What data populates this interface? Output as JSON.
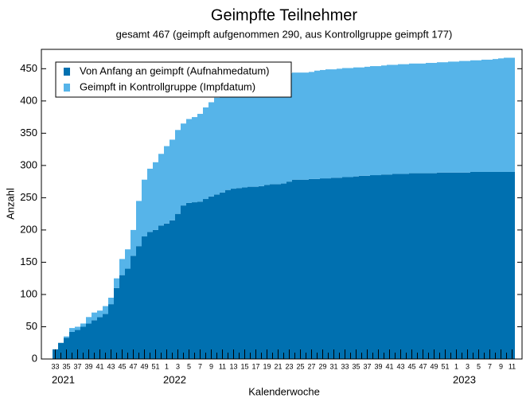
{
  "chart_data": {
    "type": "stacked-bar",
    "title": "Geimpfte Teilnehmer",
    "subtitle": "gesamt 467 (geimpft aufgenommen 290, aus Kontrollgruppe geimpft 177)",
    "xlabel": "Kalenderwoche",
    "ylabel": "Anzahl",
    "categories": [
      "33",
      null,
      "35",
      null,
      "37",
      null,
      "39",
      null,
      "41",
      null,
      "43",
      null,
      "45",
      null,
      "47",
      null,
      "49",
      null,
      "51",
      null,
      "1",
      null,
      "3",
      null,
      "5",
      null,
      "7",
      null,
      "9",
      null,
      "11",
      null,
      "13",
      null,
      "15",
      null,
      "17",
      null,
      "19",
      null,
      "21",
      null,
      "23",
      null,
      "25",
      null,
      "27",
      null,
      "29",
      null,
      "31",
      null,
      "33",
      null,
      "35",
      null,
      "37",
      null,
      "39",
      null,
      "41",
      null,
      "43",
      null,
      "45",
      null,
      "47",
      null,
      "49",
      null,
      "51",
      null,
      "1",
      null,
      "3",
      null,
      "5",
      null,
      "7",
      null,
      "9",
      null,
      "11"
    ],
    "years": [
      "2021",
      "2022",
      "2023"
    ],
    "series": [
      {
        "name": "Von Anfang an geimpft (Aufnahmedatum)",
        "color": "#0070b0",
        "values": [
          15,
          25,
          33,
          42,
          45,
          50,
          55,
          60,
          65,
          70,
          85,
          110,
          130,
          140,
          160,
          175,
          190,
          197,
          200,
          207,
          210,
          215,
          225,
          238,
          242,
          243,
          244,
          248,
          252,
          255,
          258,
          262,
          264,
          265,
          266,
          267,
          267,
          268,
          270,
          271,
          271,
          272,
          275,
          278,
          278,
          278,
          279,
          279,
          280,
          280,
          281,
          281,
          282,
          282,
          283,
          284,
          284,
          285,
          285,
          286,
          286,
          287,
          287,
          287,
          288,
          288,
          288,
          288,
          288,
          289,
          289,
          289,
          289,
          289,
          289,
          290,
          290,
          290,
          290,
          290,
          290,
          290,
          290
        ]
      },
      {
        "name": "Geimpft in Kontrollgruppe (Impfdatum)",
        "color": "#56b4e9",
        "values": [
          0,
          0,
          2,
          6,
          5,
          5,
          10,
          12,
          10,
          12,
          10,
          15,
          25,
          30,
          40,
          70,
          88,
          98,
          105,
          111,
          120,
          125,
          130,
          127,
          130,
          132,
          136,
          142,
          146,
          150,
          154,
          156,
          159,
          163,
          166,
          167,
          170,
          172,
          171,
          171,
          171,
          171,
          168,
          166,
          166,
          166,
          166,
          168,
          168,
          169,
          168,
          169,
          169,
          169,
          169,
          168,
          169,
          169,
          169,
          169,
          170,
          169,
          170,
          170,
          170,
          170,
          170,
          171,
          171,
          171,
          171,
          172,
          172,
          173,
          173,
          173,
          173,
          174,
          174,
          175,
          176,
          177,
          177
        ]
      }
    ],
    "ylim": [
      0,
      480
    ],
    "yticks": [
      0,
      50,
      100,
      150,
      200,
      250,
      300,
      350,
      400,
      450
    ],
    "legend": "upper left"
  }
}
